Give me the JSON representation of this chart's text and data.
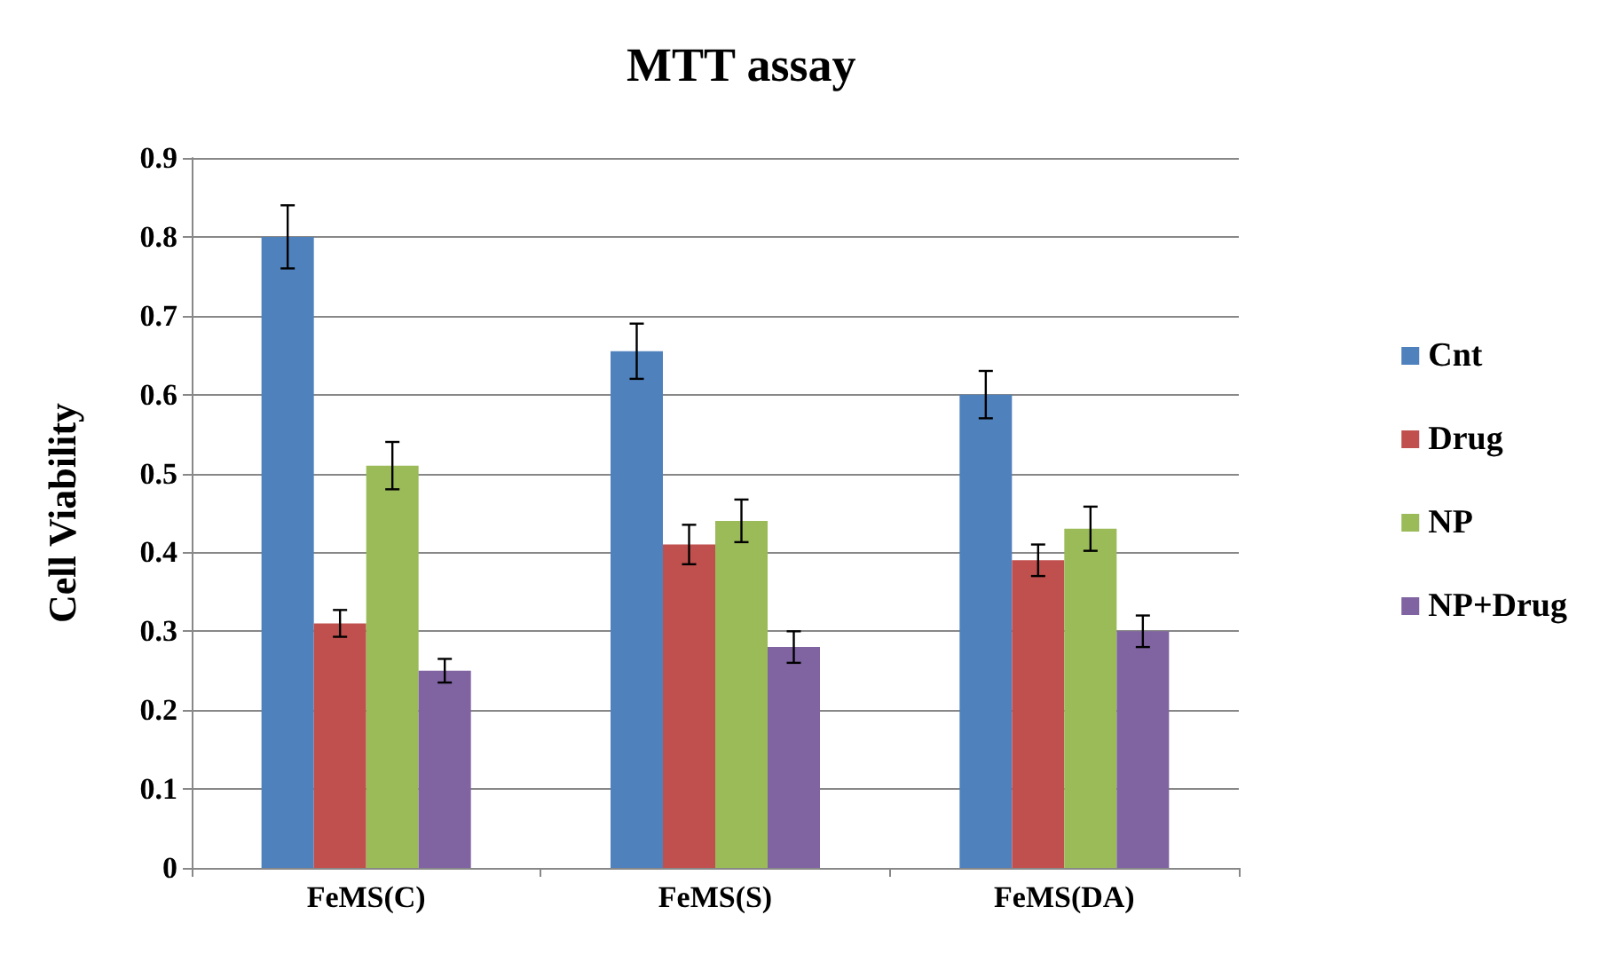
{
  "chart_data": {
    "type": "bar",
    "title": "MTT assay",
    "ylabel": "Cell Viability",
    "categories": [
      "FeMS(C)",
      "FeMS(S)",
      "FeMS(DA)"
    ],
    "series": [
      {
        "name": "Cnt",
        "color": "#4f81bd",
        "values": [
          0.8,
          0.655,
          0.6
        ],
        "errors": [
          0.04,
          0.035,
          0.03
        ]
      },
      {
        "name": "Drug",
        "color": "#c0504d",
        "values": [
          0.31,
          0.41,
          0.39
        ],
        "errors": [
          0.017,
          0.025,
          0.02
        ]
      },
      {
        "name": "NP",
        "color": "#9bbb59",
        "values": [
          0.51,
          0.44,
          0.43
        ],
        "errors": [
          0.03,
          0.027,
          0.028
        ]
      },
      {
        "name": "NP+Drug",
        "color": "#8064a2",
        "values": [
          0.25,
          0.28,
          0.3
        ],
        "errors": [
          0.015,
          0.02,
          0.02
        ]
      }
    ],
    "ylim": [
      0,
      0.9
    ],
    "yticks": [
      0,
      0.1,
      0.2,
      0.3,
      0.4,
      0.5,
      0.6,
      0.7,
      0.8,
      0.9
    ],
    "grid": "y",
    "legend": "right"
  }
}
